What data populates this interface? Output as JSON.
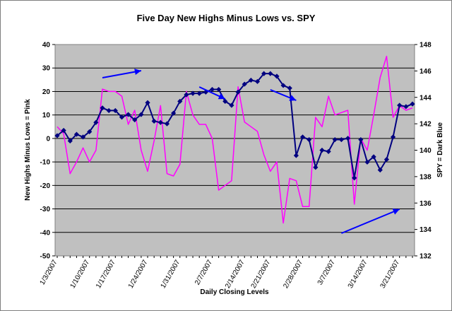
{
  "chart_data": {
    "type": "line",
    "title": "Five Day New Highs Minus Lows vs. SPY",
    "xlabel": "Daily Closing Levels",
    "ylabel_left": "New Highs Minus Lows = Pink",
    "ylabel_right": "SPY = Dark Blue",
    "ylim_left": [
      -50,
      40
    ],
    "ylim_right": [
      132,
      148
    ],
    "yticks_left": [
      "40",
      "30",
      "20",
      "10",
      "0",
      "-10",
      "-20",
      "-30",
      "-40",
      "-50"
    ],
    "yticks_right": [
      "148",
      "146",
      "144",
      "142",
      "140",
      "138",
      "136",
      "134",
      "132"
    ],
    "x_dates": [
      "1/3/2007",
      "1/4/2007",
      "1/5/2007",
      "1/8/2007",
      "1/9/2007",
      "1/10/2007",
      "1/11/2007",
      "1/12/2007",
      "1/16/2007",
      "1/17/2007",
      "1/18/2007",
      "1/19/2007",
      "1/22/2007",
      "1/23/2007",
      "1/24/2007",
      "1/25/2007",
      "1/26/2007",
      "1/29/2007",
      "1/30/2007",
      "1/31/2007",
      "2/1/2007",
      "2/2/2007",
      "2/5/2007",
      "2/6/2007",
      "2/7/2007",
      "2/8/2007",
      "2/9/2007",
      "2/12/2007",
      "2/13/2007",
      "2/14/2007",
      "2/15/2007",
      "2/16/2007",
      "2/20/2007",
      "2/21/2007",
      "2/22/2007",
      "2/23/2007",
      "2/26/2007",
      "2/27/2007",
      "2/28/2007",
      "3/1/2007",
      "3/2/2007",
      "3/5/2007",
      "3/6/2007",
      "3/7/2007",
      "3/8/2007",
      "3/9/2007",
      "3/12/2007",
      "3/13/2007",
      "3/14/2007",
      "3/15/2007",
      "3/16/2007",
      "3/19/2007",
      "3/20/2007",
      "3/21/2007",
      "3/22/2007",
      "3/23/2007"
    ],
    "x_tick_labels": [
      "1/3/2007",
      "1/10/2007",
      "1/17/2007",
      "1/24/2007",
      "1/31/2007",
      "2/7/2007",
      "2/14/2007",
      "2/21/2007",
      "2/28/2007",
      "3/7/2007",
      "3/14/2007",
      "3/21/2007"
    ],
    "series": [
      {
        "name": "New Highs Minus Lows",
        "axis": "left",
        "color": "#ff00ff",
        "values": [
          5,
          2,
          -15,
          -10,
          -4,
          -10,
          -5,
          21,
          20,
          20,
          18,
          6,
          12,
          -5,
          -14,
          -1,
          14,
          -15,
          -16,
          -11,
          20,
          10,
          6,
          6,
          0,
          -22,
          -20,
          -18,
          22,
          7,
          5,
          3,
          -7,
          -14,
          -10,
          -36,
          -17,
          -18,
          -29,
          -29,
          9,
          5,
          18,
          10,
          11,
          12,
          -28,
          0,
          -5,
          10,
          26,
          35,
          9,
          14,
          12,
          13
        ]
      },
      {
        "name": "SPY",
        "axis": "right",
        "color": "#000080",
        "values": [
          141.1,
          141.5,
          140.7,
          141.2,
          141.0,
          141.4,
          142.1,
          143.2,
          143.0,
          143.0,
          142.5,
          142.7,
          142.3,
          142.7,
          143.6,
          142.2,
          142.1,
          142.0,
          142.8,
          143.7,
          144.2,
          144.3,
          144.3,
          144.4,
          144.6,
          144.6,
          143.7,
          143.4,
          144.4,
          145.0,
          145.3,
          145.2,
          145.8,
          145.8,
          145.6,
          144.9,
          144.7,
          139.6,
          141.0,
          140.8,
          138.7,
          140.0,
          139.9,
          140.8,
          140.8,
          140.9,
          137.9,
          140.8,
          139.1,
          139.5,
          138.5,
          139.3,
          141.0,
          143.4,
          143.3,
          143.5
        ]
      }
    ],
    "annotations": [
      {
        "type": "arrow",
        "from": [
          7,
          130
        ],
        "to": [
          13,
          120
        ]
      },
      {
        "type": "arrow",
        "from": [
          22,
          143
        ],
        "to": [
          26,
          130
        ]
      },
      {
        "type": "arrow",
        "from": [
          33,
          147
        ],
        "to": [
          37,
          132
        ]
      },
      {
        "type": "arrow",
        "from": [
          44,
          124
        ],
        "to": [
          53,
          130
        ]
      }
    ],
    "grid": true,
    "legend": "none"
  },
  "colors": {
    "plot_background": "#c0c0c0",
    "annotation_arrow": "#0000ff"
  }
}
